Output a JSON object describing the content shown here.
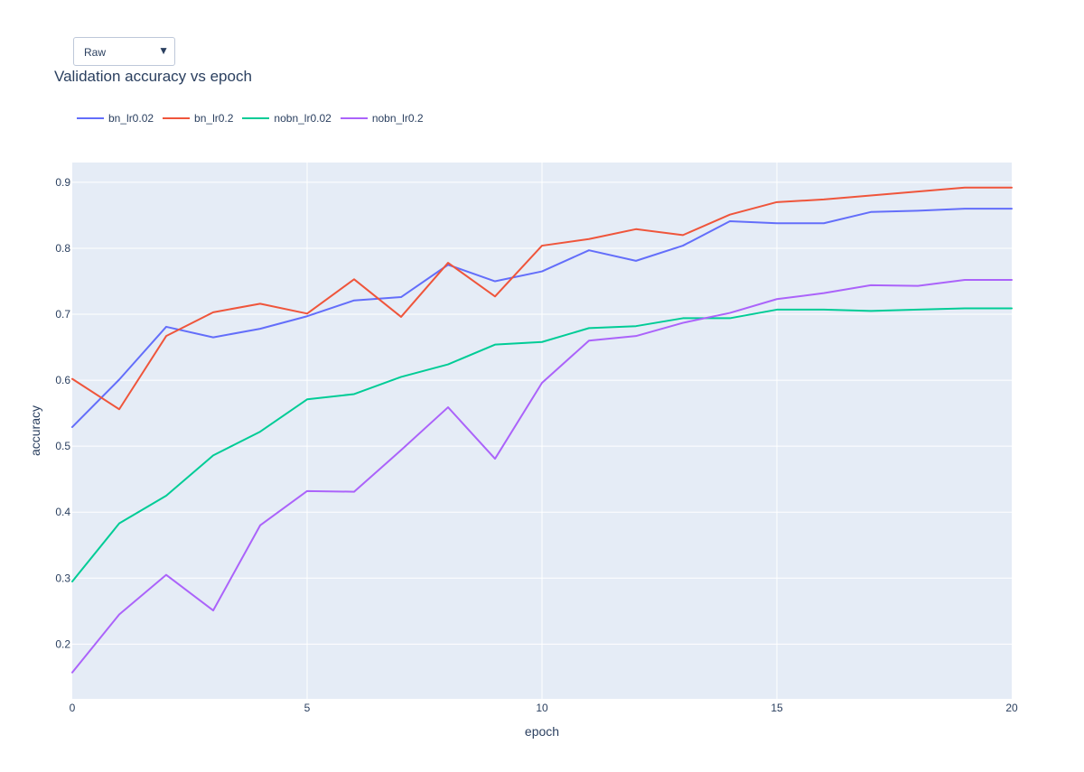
{
  "dropdown": {
    "selected": "Raw",
    "arrow": "▼"
  },
  "chart_data": {
    "type": "line",
    "title": "Validation accuracy vs epoch",
    "xlabel": "epoch",
    "ylabel": "accuracy",
    "xlim": [
      0,
      20
    ],
    "ylim": [
      0.117,
      0.93
    ],
    "xticks": [
      0,
      5,
      10,
      15,
      20
    ],
    "yticks": [
      0.2,
      0.3,
      0.4,
      0.5,
      0.6,
      0.7,
      0.8,
      0.9
    ],
    "grid": true,
    "legend_position": "top-left, horizontal",
    "background": "#e5ecf6",
    "x": [
      0,
      1,
      2,
      3,
      4,
      5,
      6,
      7,
      8,
      9,
      10,
      11,
      12,
      13,
      14,
      15,
      16,
      17,
      18,
      19,
      20
    ],
    "series": [
      {
        "name": "bn_lr0.02",
        "color": "#636efa",
        "values": [
          0.529,
          0.601,
          0.681,
          0.665,
          0.678,
          0.697,
          0.721,
          0.726,
          0.775,
          0.75,
          0.765,
          0.797,
          0.781,
          0.804,
          0.841,
          0.838,
          0.838,
          0.855,
          0.857,
          0.86,
          0.86
        ]
      },
      {
        "name": "bn_lr0.2",
        "color": "#ef553b",
        "values": [
          0.602,
          0.556,
          0.667,
          0.703,
          0.716,
          0.701,
          0.753,
          0.696,
          0.778,
          0.727,
          0.804,
          0.814,
          0.829,
          0.82,
          0.851,
          0.87,
          0.874,
          0.88,
          0.886,
          0.892,
          0.892
        ]
      },
      {
        "name": "nobn_lr0.02",
        "color": "#00cc96",
        "values": [
          0.295,
          0.383,
          0.425,
          0.486,
          0.522,
          0.571,
          0.579,
          0.605,
          0.624,
          0.654,
          0.658,
          0.679,
          0.682,
          0.694,
          0.694,
          0.707,
          0.707,
          0.705,
          0.707,
          0.709,
          0.709
        ]
      },
      {
        "name": "nobn_lr0.2",
        "color": "#ab63fa",
        "values": [
          0.157,
          0.245,
          0.305,
          0.251,
          0.38,
          0.432,
          0.431,
          0.494,
          0.559,
          0.481,
          0.596,
          0.66,
          0.667,
          0.687,
          0.702,
          0.723,
          0.732,
          0.744,
          0.743,
          0.752,
          0.752
        ]
      }
    ]
  }
}
